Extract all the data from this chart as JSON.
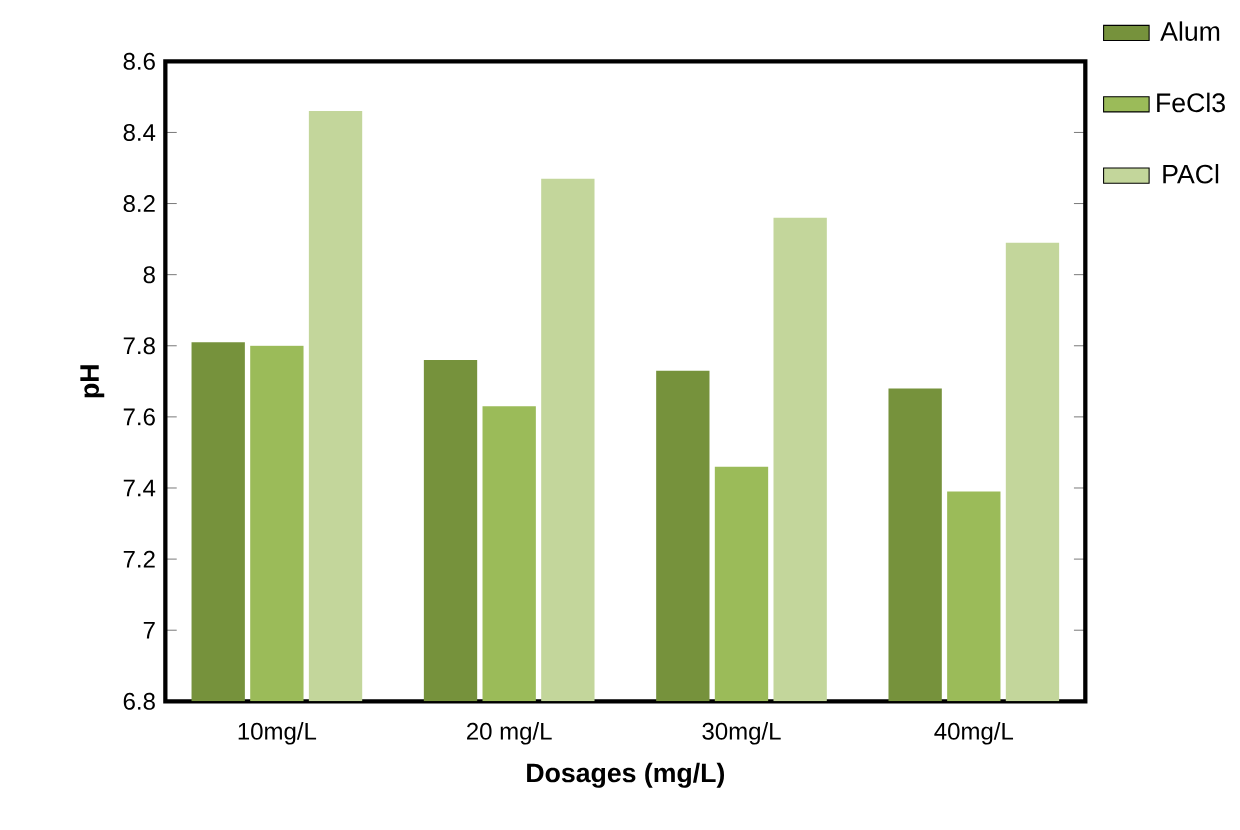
{
  "chart_data": {
    "type": "bar",
    "xlabel": "Dosages (mg/L)",
    "ylabel": "pH",
    "categories": [
      "10mg/L",
      "20 mg/L",
      "30mg/L",
      "40mg/L"
    ],
    "series": [
      {
        "name": "Alum",
        "color": "#76923c",
        "values": [
          7.81,
          7.76,
          7.73,
          7.68
        ]
      },
      {
        "name": "FeCl3",
        "color": "#9bbb59",
        "values": [
          7.8,
          7.63,
          7.46,
          7.39
        ]
      },
      {
        "name": "PACl",
        "color": "#c3d69b",
        "values": [
          8.46,
          8.27,
          8.16,
          8.09
        ]
      }
    ],
    "ylim": [
      6.8,
      8.6
    ],
    "yticks": [
      6.8,
      7,
      7.2,
      7.4,
      7.6,
      7.8,
      8,
      8.2,
      8.4,
      8.6
    ],
    "grid": false,
    "legend": "top right"
  }
}
